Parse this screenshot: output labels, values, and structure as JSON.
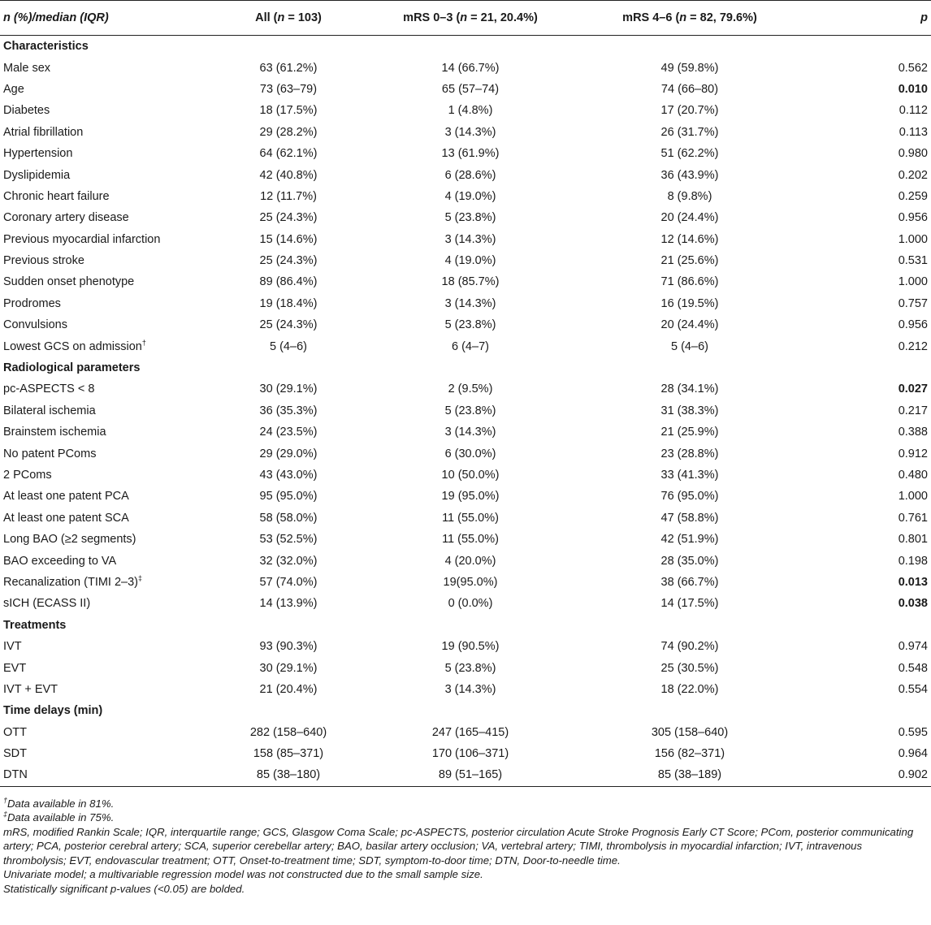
{
  "header": {
    "col0_italic": "n",
    "col0_rest": " (%)/median (IQR)",
    "col1_pre": "All (",
    "col1_n": "n",
    "col1_post": " = 103)",
    "col2_pre": "mRS 0–3 (",
    "col2_n": "n",
    "col2_post": " = 21, 20.4%)",
    "col3_pre": "mRS 4–6 (",
    "col3_n": "n",
    "col3_post": " = 82, 79.6%)",
    "col4": "p"
  },
  "rows": [
    {
      "type": "section",
      "label": "Characteristics"
    },
    {
      "label": "Male sex",
      "all": "63 (61.2%)",
      "g1": "14 (66.7%)",
      "g2": "49 (59.8%)",
      "p": "0.562"
    },
    {
      "label": "Age",
      "all": "73 (63–79)",
      "g1": "65 (57–74)",
      "g2": "74 (66–80)",
      "p": "0.010",
      "sig": true
    },
    {
      "label": "Diabetes",
      "all": "18 (17.5%)",
      "g1": "1 (4.8%)",
      "g2": "17 (20.7%)",
      "p": "0.112"
    },
    {
      "label": "Atrial fibrillation",
      "all": "29 (28.2%)",
      "g1": "3 (14.3%)",
      "g2": "26 (31.7%)",
      "p": "0.113"
    },
    {
      "label": "Hypertension",
      "all": "64 (62.1%)",
      "g1": "13 (61.9%)",
      "g2": "51 (62.2%)",
      "p": "0.980"
    },
    {
      "label": "Dyslipidemia",
      "all": "42 (40.8%)",
      "g1": "6 (28.6%)",
      "g2": "36 (43.9%)",
      "p": "0.202"
    },
    {
      "label": "Chronic heart failure",
      "all": "12 (11.7%)",
      "g1": "4 (19.0%)",
      "g2": "8 (9.8%)",
      "p": "0.259"
    },
    {
      "label": "Coronary artery disease",
      "all": "25 (24.3%)",
      "g1": "5 (23.8%)",
      "g2": "20 (24.4%)",
      "p": "0.956"
    },
    {
      "label": "Previous myocardial infarction",
      "all": "15 (14.6%)",
      "g1": "3 (14.3%)",
      "g2": "12 (14.6%)",
      "p": "1.000"
    },
    {
      "label": "Previous stroke",
      "all": "25 (24.3%)",
      "g1": "4 (19.0%)",
      "g2": "21 (25.6%)",
      "p": "0.531"
    },
    {
      "label": "Sudden onset phenotype",
      "all": "89 (86.4%)",
      "g1": "18 (85.7%)",
      "g2": "71 (86.6%)",
      "p": "1.000"
    },
    {
      "label": "Prodromes",
      "all": "19 (18.4%)",
      "g1": "3 (14.3%)",
      "g2": "16 (19.5%)",
      "p": "0.757"
    },
    {
      "label": "Convulsions",
      "all": "25 (24.3%)",
      "g1": "5 (23.8%)",
      "g2": "20 (24.4%)",
      "p": "0.956"
    },
    {
      "label": "Lowest GCS on admission",
      "sup": "†",
      "all": "5 (4–6)",
      "g1": "6 (4–7)",
      "g2": "5 (4–6)",
      "p": "0.212"
    },
    {
      "type": "section",
      "label": "Radiological parameters"
    },
    {
      "label": "pc-ASPECTS < 8",
      "all": "30 (29.1%)",
      "g1": "2 (9.5%)",
      "g2": "28 (34.1%)",
      "p": "0.027",
      "sig": true
    },
    {
      "label": "Bilateral ischemia",
      "all": "36 (35.3%)",
      "g1": "5 (23.8%)",
      "g2": "31 (38.3%)",
      "p": "0.217"
    },
    {
      "label": "Brainstem ischemia",
      "all": "24 (23.5%)",
      "g1": "3 (14.3%)",
      "g2": "21 (25.9%)",
      "p": "0.388"
    },
    {
      "label": "No patent PComs",
      "all": "29 (29.0%)",
      "g1": "6 (30.0%)",
      "g2": "23 (28.8%)",
      "p": "0.912"
    },
    {
      "label": "2 PComs",
      "all": "43 (43.0%)",
      "g1": "10 (50.0%)",
      "g2": "33 (41.3%)",
      "p": "0.480"
    },
    {
      "label": "At least one patent PCA",
      "all": "95 (95.0%)",
      "g1": "19 (95.0%)",
      "g2": "76 (95.0%)",
      "p": "1.000"
    },
    {
      "label": "At least one patent SCA",
      "all": "58 (58.0%)",
      "g1": "11 (55.0%)",
      "g2": "47 (58.8%)",
      "p": "0.761"
    },
    {
      "label": "Long BAO (≥2 segments)",
      "all": "53 (52.5%)",
      "g1": "11 (55.0%)",
      "g2": "42 (51.9%)",
      "p": "0.801"
    },
    {
      "label": "BAO exceeding to VA",
      "all": "32 (32.0%)",
      "g1": "4 (20.0%)",
      "g2": "28 (35.0%)",
      "p": "0.198"
    },
    {
      "label": "Recanalization (TIMI 2–3)",
      "sup": "‡",
      "all": "57 (74.0%)",
      "g1": "19(95.0%)",
      "g2": "38 (66.7%)",
      "p": "0.013",
      "sig": true
    },
    {
      "label": "sICH (ECASS II)",
      "all": "14 (13.9%)",
      "g1": "0 (0.0%)",
      "g2": "14 (17.5%)",
      "p": "0.038",
      "sig": true
    },
    {
      "type": "section",
      "label": "Treatments"
    },
    {
      "label": "IVT",
      "all": "93 (90.3%)",
      "g1": "19 (90.5%)",
      "g2": "74 (90.2%)",
      "p": "0.974"
    },
    {
      "label": "EVT",
      "all": "30 (29.1%)",
      "g1": "5 (23.8%)",
      "g2": "25 (30.5%)",
      "p": "0.548"
    },
    {
      "label": "IVT + EVT",
      "all": "21 (20.4%)",
      "g1": "3 (14.3%)",
      "g2": "18 (22.0%)",
      "p": "0.554"
    },
    {
      "type": "section",
      "label": "Time delays (min)"
    },
    {
      "label": "OTT",
      "all": "282 (158–640)",
      "g1": "247 (165–415)",
      "g2": "305 (158–640)",
      "p": "0.595"
    },
    {
      "label": "SDT",
      "all": "158 (85–371)",
      "g1": "170 (106–371)",
      "g2": "156 (82–371)",
      "p": "0.964"
    },
    {
      "label": "DTN",
      "all": "85 (38–180)",
      "g1": "89 (51–165)",
      "g2": "85 (38–189)",
      "p": "0.902"
    }
  ],
  "notes": {
    "note1_sup": "†",
    "note1": "Data available in 81%.",
    "note2_sup": "‡",
    "note2": "Data available in 75%.",
    "abbrev": "mRS, modified Rankin Scale; IQR, interquartile range; GCS, Glasgow Coma Scale; pc-ASPECTS, posterior circulation Acute Stroke Prognosis Early CT Score; PCom, posterior communicating artery; PCA, posterior cerebral artery; SCA, superior cerebellar artery; BAO, basilar artery occlusion; VA, vertebral artery; TIMI, thrombolysis in myocardial infarction; IVT, intravenous thrombolysis; EVT, endovascular treatment; OTT, Onset-to-treatment time; SDT, symptom-to-door time; DTN, Door-to-needle time.",
    "model": "Univariate model; a multivariable regression model was not constructed due to the small sample size.",
    "sig": "Statistically significant p-values (<0.05) are bolded."
  }
}
